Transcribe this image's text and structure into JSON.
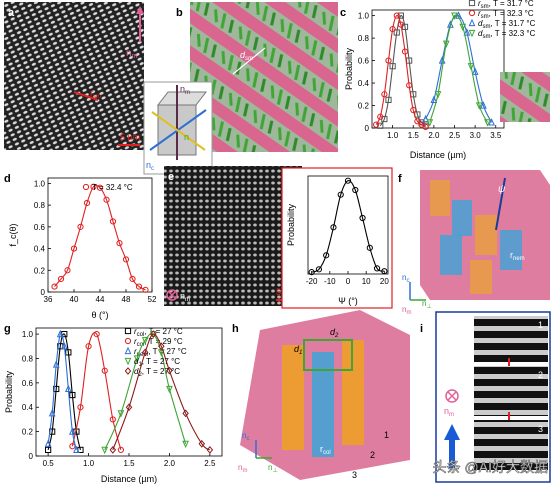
{
  "panels": {
    "a": {
      "label": "a",
      "scale": "5 µm",
      "n_m": "n",
      "n_m_sub": "m",
      "r_label": "r",
      "r_sub": "sm"
    },
    "b": {
      "label": "b",
      "d_label": "d",
      "d_sub": "sm",
      "n_m": "n",
      "n_m_sub": "m",
      "n_c": "n",
      "n_c_sub": "c",
      "n_base": "n"
    },
    "c": {
      "label": "c",
      "xlabel": "Distance (µm)",
      "ylabel": "Probability"
    },
    "d": {
      "label": "d",
      "xlabel": "θ (°)",
      "ylabel": "f",
      "ylabel_sub": "c",
      "ylabel_tail": "(θ)"
    },
    "e": {
      "label": "e",
      "scale": "5 µm",
      "n_m": "n",
      "n_m_sub": "m",
      "xlabel": "Ψ (°)",
      "ylabel": "Probability"
    },
    "f": {
      "label": "f",
      "psi": "ψ",
      "r_label": "r",
      "r_sub": "nem",
      "n_c": "n",
      "n_c_sub": "c",
      "n_m": "n",
      "n_m_sub": "m",
      "n_perp": "n",
      "n_perp_sub": "⊥"
    },
    "g": {
      "label": "g",
      "xlabel": "Distance (µm)",
      "ylabel": "Probability"
    },
    "h": {
      "label": "h",
      "d1": "d",
      "d1_sub": "1",
      "d2": "d",
      "d2_sub": "2",
      "r_label": "r",
      "r_sub": "col",
      "n_c": "n",
      "n_c_sub": "c",
      "n_m": "n",
      "n_m_sub": "m",
      "n_perp": "n",
      "n_perp_sub": "⊥",
      "num1": "1",
      "num2": "2",
      "num3": "3"
    },
    "i": {
      "label": "i",
      "n_m": "n",
      "n_m_sub": "m",
      "frame1": "1",
      "frame2": "2",
      "frame3": "3"
    }
  },
  "watermark": "头条 @AI好大数据",
  "colors": {
    "pink": "#d9668f",
    "green": "#3fa535",
    "blue": "#2d6fd6",
    "red": "#e02020",
    "darkred": "#8b1a1a",
    "orange": "#f0a020"
  },
  "chart_data": [
    {
      "panel": "c",
      "type": "line",
      "xlabel": "Distance (µm)",
      "ylabel": "Probability",
      "xlim": [
        0.5,
        3.7
      ],
      "ylim": [
        0,
        1.05
      ],
      "xticks": [
        "1.0",
        "1.5",
        "2.0",
        "2.5",
        "3.0",
        "3.5"
      ],
      "yticks": [
        "0",
        "0.2",
        "0.4",
        "0.6",
        "0.8",
        "1.0"
      ],
      "legend_pos": "top-right",
      "series": [
        {
          "name": "r_sm, T = 31.7 °C",
          "label_main": "r",
          "label_sub": "sm",
          "label_tail": ", T = 31.7 °C",
          "color": "#555555",
          "marker": "square",
          "x": [
            0.7,
            0.8,
            0.9,
            1.0,
            1.1,
            1.2,
            1.3,
            1.4,
            1.5,
            1.6,
            1.7,
            1.8
          ],
          "y": [
            0.02,
            0.08,
            0.25,
            0.55,
            0.85,
            1.0,
            0.9,
            0.6,
            0.3,
            0.12,
            0.05,
            0.02
          ]
        },
        {
          "name": "r_sm, T = 32.3 °C",
          "label_main": "r",
          "label_sub": "sm",
          "label_tail": ", T = 32.3 °C",
          "color": "#e02020",
          "marker": "circle",
          "x": [
            0.6,
            0.7,
            0.8,
            0.9,
            1.0,
            1.1,
            1.2,
            1.3,
            1.4,
            1.5,
            1.6,
            1.7,
            1.8
          ],
          "y": [
            0.03,
            0.1,
            0.3,
            0.6,
            0.88,
            1.0,
            0.92,
            0.68,
            0.38,
            0.16,
            0.06,
            0.03,
            0.01
          ]
        },
        {
          "name": "d_sm, T = 31.7 °C",
          "label_main": "d",
          "label_sub": "sm",
          "label_tail": ", T = 31.7 °C",
          "color": "#2d6fd6",
          "marker": "triangle-up",
          "x": [
            1.8,
            2.0,
            2.2,
            2.4,
            2.6,
            2.8,
            3.0,
            3.2,
            3.4
          ],
          "y": [
            0.08,
            0.25,
            0.6,
            0.92,
            1.0,
            0.85,
            0.5,
            0.2,
            0.05
          ]
        },
        {
          "name": "d_sm, T = 32.3 °C",
          "label_main": "d",
          "label_sub": "sm",
          "label_tail": ", T = 32.3 °C",
          "color": "#3fa535",
          "marker": "triangle-down",
          "x": [
            1.9,
            2.1,
            2.3,
            2.5,
            2.7,
            2.9,
            3.1,
            3.3
          ],
          "y": [
            0.05,
            0.3,
            0.75,
            1.0,
            0.9,
            0.55,
            0.2,
            0.05
          ]
        }
      ]
    },
    {
      "panel": "d",
      "type": "line",
      "xlabel": "θ (°)",
      "ylabel": "f_c(θ)",
      "xlim": [
        36,
        52
      ],
      "ylim": [
        0,
        1.05
      ],
      "xticks": [
        "36",
        "40",
        "44",
        "48",
        "52"
      ],
      "yticks": [
        "0",
        "0.2",
        "0.4",
        "0.6",
        "0.8",
        "1.0"
      ],
      "legend_pos": "top-right",
      "series": [
        {
          "name": "T = 32.4 °C",
          "label_main": "T = 32.4 °C",
          "color": "#e02020",
          "marker": "circle",
          "x": [
            37,
            38,
            39,
            40,
            41,
            42,
            43,
            44,
            45,
            46,
            47,
            48,
            49,
            50,
            51
          ],
          "y": [
            0.05,
            0.12,
            0.2,
            0.4,
            0.6,
            0.82,
            0.97,
            0.96,
            0.85,
            0.65,
            0.45,
            0.3,
            0.12,
            0.05,
            0.02
          ]
        }
      ]
    },
    {
      "panel": "e",
      "type": "line",
      "xlabel": "Ψ (°)",
      "ylabel": "Probability",
      "xlim": [
        -22,
        22
      ],
      "ylim": [
        0,
        1.05
      ],
      "xticks": [
        "-20",
        "-10",
        "0",
        "10",
        "20"
      ],
      "yticks": [],
      "series": [
        {
          "name": "",
          "color": "#000000",
          "marker": "circle",
          "x": [
            -20,
            -16,
            -12,
            -8,
            -4,
            0,
            4,
            8,
            12,
            16,
            20
          ],
          "y": [
            0.02,
            0.05,
            0.2,
            0.5,
            0.85,
            1.0,
            0.9,
            0.6,
            0.28,
            0.06,
            0.03
          ]
        }
      ]
    },
    {
      "panel": "g",
      "type": "line",
      "xlabel": "Distance (µm)",
      "ylabel": "Probability",
      "xlim": [
        0.35,
        2.65
      ],
      "ylim": [
        0,
        1.05
      ],
      "xticks": [
        "0.5",
        "1.0",
        "1.5",
        "2.0",
        "2.5"
      ],
      "yticks": [
        "0",
        "0.2",
        "0.4",
        "0.6",
        "0.8",
        "1.0"
      ],
      "legend_pos": "top-right",
      "series": [
        {
          "name": "r_col, T = 27 °C",
          "label_main": "r",
          "label_sub": "col",
          "label_tail": ", T = 27 °C",
          "color": "#000000",
          "marker": "square",
          "x": [
            0.5,
            0.55,
            0.6,
            0.65,
            0.7,
            0.75,
            0.8,
            0.85,
            0.9
          ],
          "y": [
            0.05,
            0.2,
            0.55,
            0.9,
            1.0,
            0.85,
            0.5,
            0.2,
            0.05
          ]
        },
        {
          "name": "r_col, T = 29 °C",
          "label_main": "r",
          "label_sub": "col",
          "label_tail": ", T = 29 °C",
          "color": "#e02020",
          "marker": "circle",
          "x": [
            0.8,
            0.9,
            1.0,
            1.1,
            1.2,
            1.3,
            1.4
          ],
          "y": [
            0.08,
            0.4,
            0.9,
            1.0,
            0.7,
            0.3,
            0.05
          ]
        },
        {
          "name": "r_nem, T = 27 °C",
          "label_main": "r",
          "label_sub": "nem",
          "label_tail": ", T = 27 °C",
          "color": "#2d6fd6",
          "marker": "triangle-up",
          "x": [
            0.5,
            0.55,
            0.6,
            0.65,
            0.7,
            0.75,
            0.8,
            0.85
          ],
          "y": [
            0.1,
            0.35,
            0.75,
            1.0,
            0.9,
            0.55,
            0.2,
            0.05
          ]
        },
        {
          "name": "d_1, T = 27 °C",
          "label_main": "d",
          "label_sub": "1",
          "label_tail": ", T = 27 °C",
          "color": "#3fa535",
          "marker": "triangle-down",
          "x": [
            1.2,
            1.4,
            1.6,
            1.7,
            1.8,
            1.9,
            2.0,
            2.2
          ],
          "y": [
            0.05,
            0.35,
            0.8,
            0.95,
            1.0,
            0.85,
            0.55,
            0.1
          ]
        },
        {
          "name": "d_2, T = 27 °C",
          "label_main": "d",
          "label_sub": "2",
          "label_tail": ", T = 27 °C",
          "color": "#8b1a1a",
          "marker": "diamond",
          "x": [
            1.3,
            1.5,
            1.7,
            1.8,
            1.9,
            2.0,
            2.2,
            2.4,
            2.5
          ],
          "y": [
            0.05,
            0.4,
            0.85,
            1.0,
            0.9,
            0.7,
            0.35,
            0.1,
            0.05
          ]
        }
      ]
    }
  ]
}
